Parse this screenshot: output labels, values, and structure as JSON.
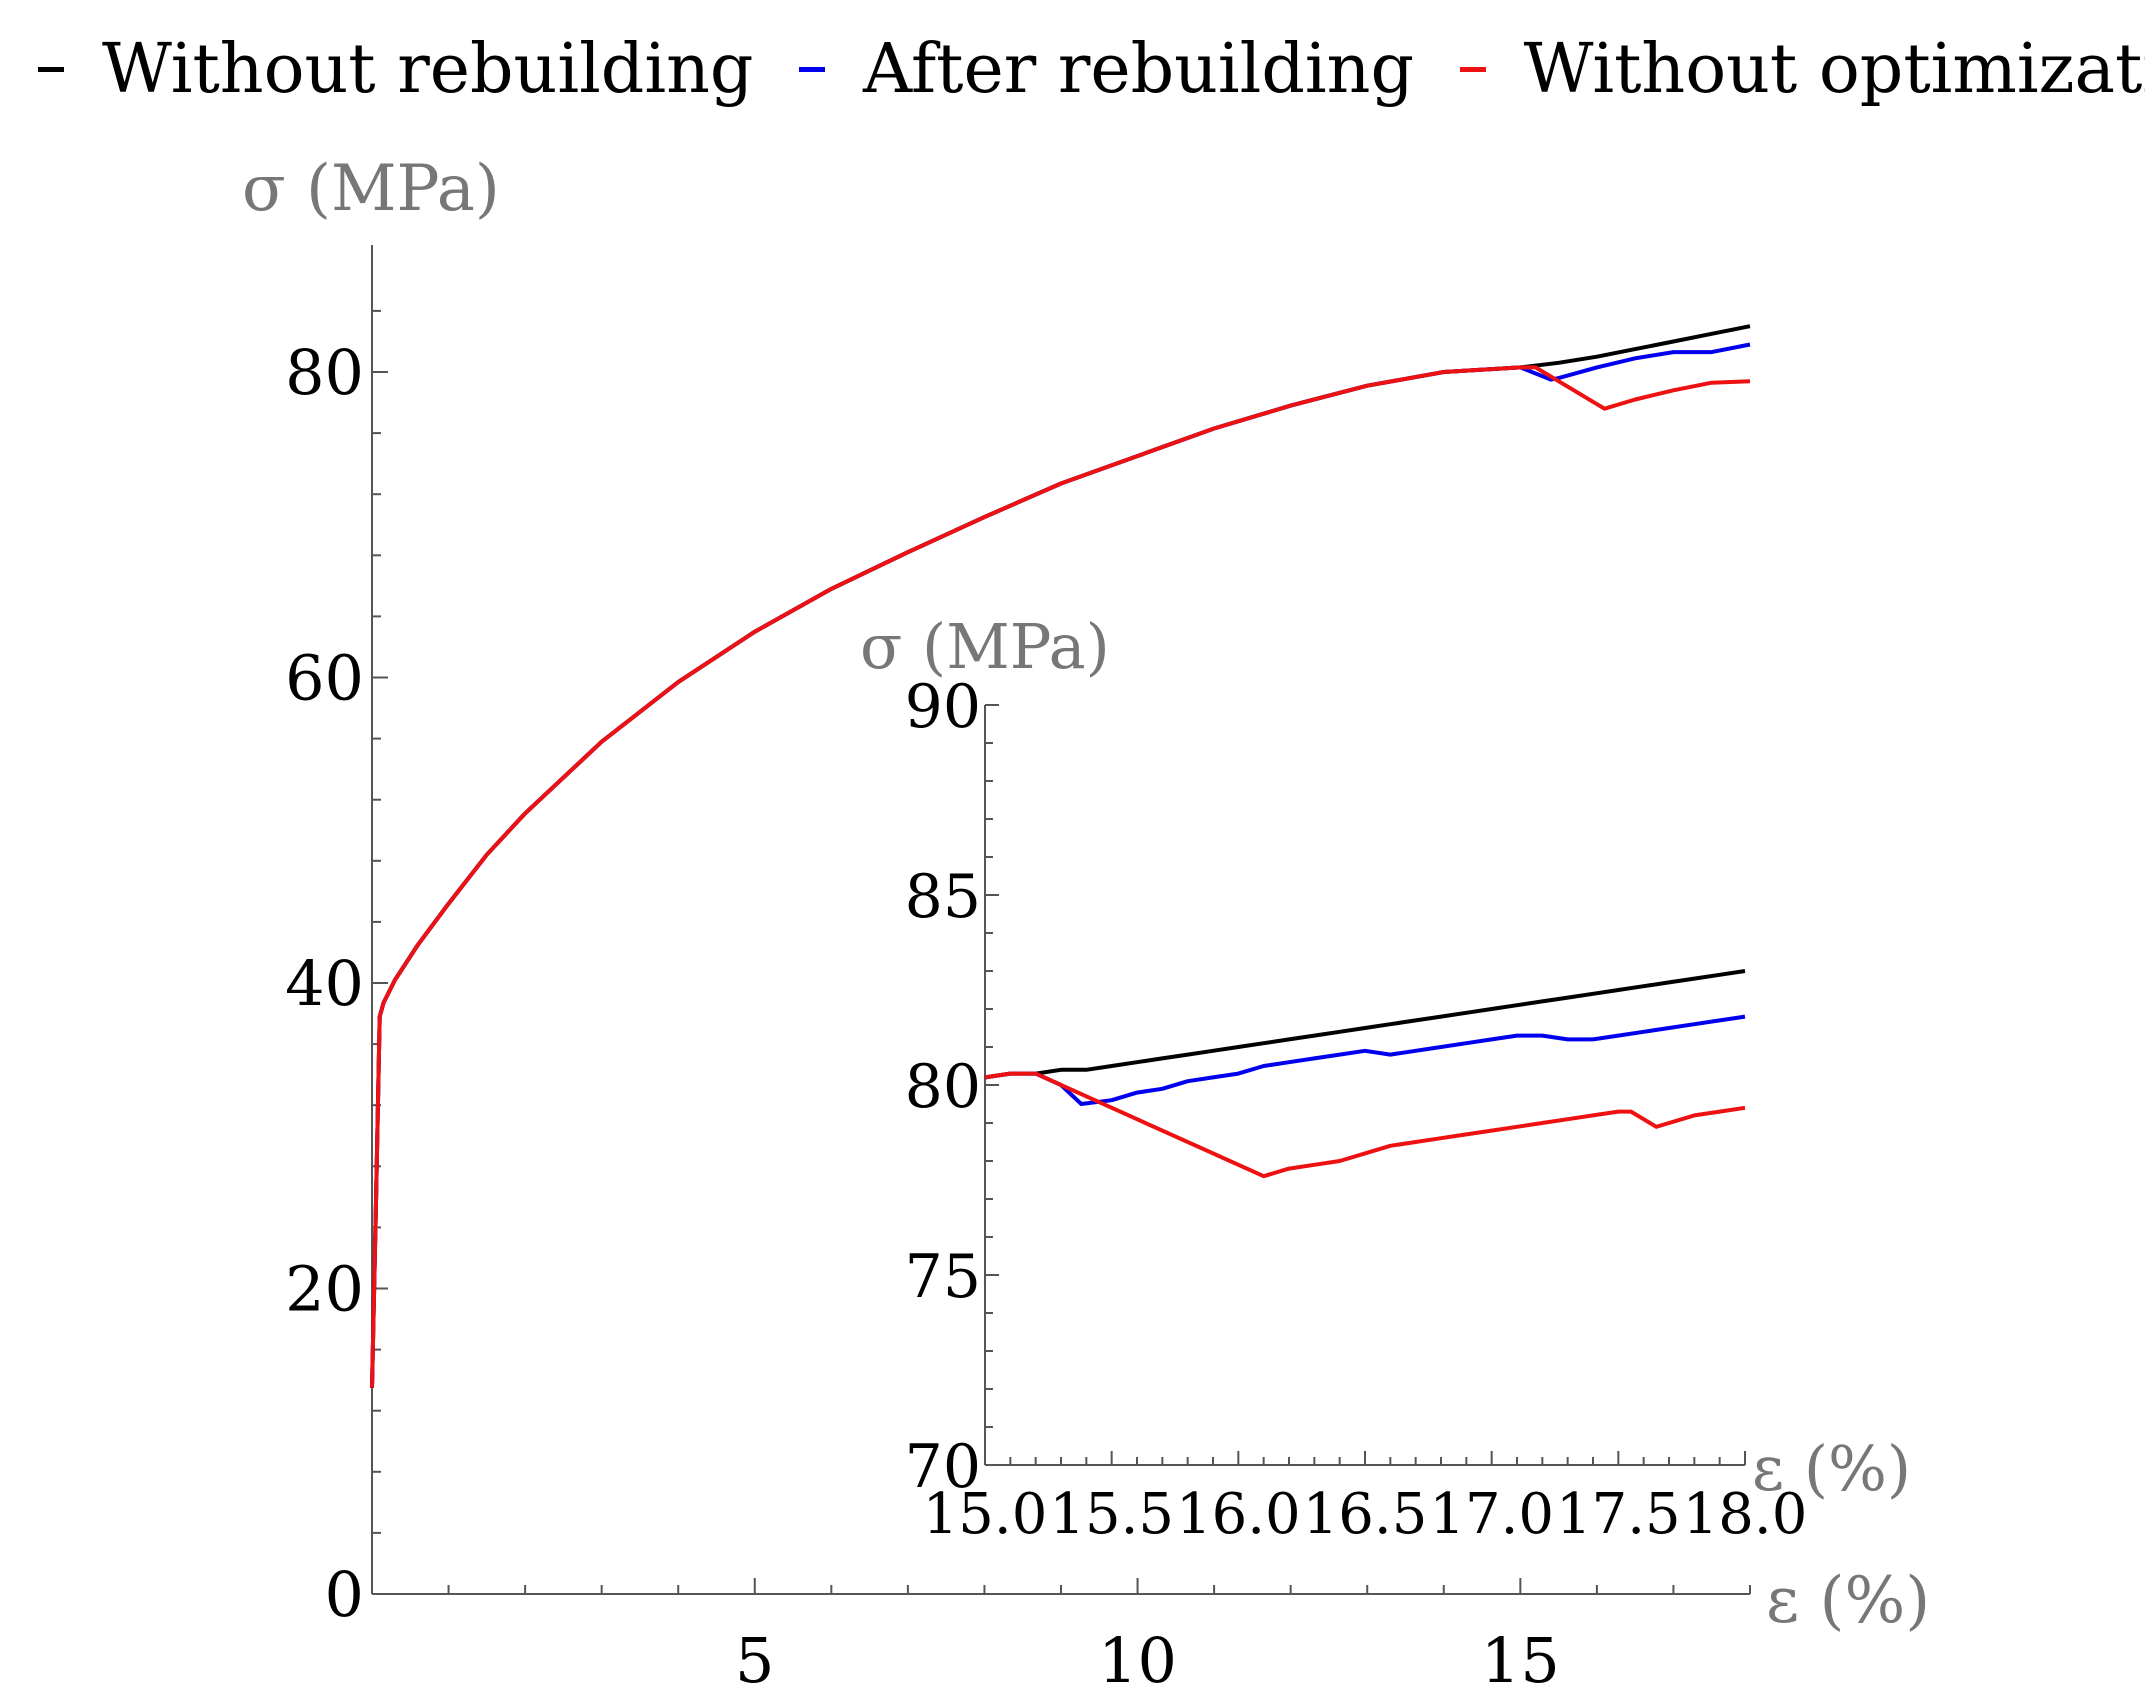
{
  "chart_data": [
    {
      "type": "line",
      "role": "main",
      "xlabel": "ε (%)",
      "ylabel": "σ (MPa)",
      "xlim": [
        0,
        18
      ],
      "ylim": [
        0,
        80
      ],
      "xticks": [
        5,
        10,
        15
      ],
      "yticks": [
        0,
        20,
        40,
        60,
        80
      ],
      "series": [
        {
          "name": "Without rebuilding",
          "color": "#000000",
          "x": [
            0,
            0.05,
            0.1,
            0.15,
            0.3,
            0.6,
            1,
            1.5,
            2,
            3,
            4,
            5,
            6,
            7,
            8,
            9,
            10,
            11,
            12,
            13,
            14,
            15,
            15.5,
            16,
            16.5,
            17,
            17.5,
            18
          ],
          "y": [
            13.5,
            25,
            37.8,
            38.7,
            40.2,
            42.5,
            45.2,
            48.4,
            51.1,
            55.8,
            59.7,
            63.0,
            65.8,
            68.2,
            70.5,
            72.7,
            74.5,
            76.3,
            77.8,
            79.1,
            80.0,
            80.3,
            80.6,
            81.0,
            81.5,
            82.0,
            82.5,
            83.0
          ]
        },
        {
          "name": "After rebuilding",
          "color": "#0000ee",
          "x": [
            0,
            0.05,
            0.1,
            0.15,
            0.3,
            0.6,
            1,
            1.5,
            2,
            3,
            4,
            5,
            6,
            7,
            8,
            9,
            10,
            11,
            12,
            13,
            14,
            15,
            15.4,
            15.5,
            16,
            16.5,
            17,
            17.5,
            18
          ],
          "y": [
            13.5,
            25,
            37.8,
            38.7,
            40.2,
            42.5,
            45.2,
            48.4,
            51.1,
            55.8,
            59.7,
            63.0,
            65.8,
            68.2,
            70.5,
            72.7,
            74.5,
            76.3,
            77.8,
            79.1,
            80.0,
            80.3,
            79.5,
            79.6,
            80.3,
            80.9,
            81.3,
            81.3,
            81.8
          ]
        },
        {
          "name": "Without optimization",
          "color": "#ee1111",
          "x": [
            0,
            0.05,
            0.1,
            0.15,
            0.3,
            0.6,
            1,
            1.5,
            2,
            3,
            4,
            5,
            6,
            7,
            8,
            9,
            10,
            11,
            12,
            13,
            14,
            15,
            15.2,
            16.1,
            16.5,
            17,
            17.5,
            18
          ],
          "y": [
            13.5,
            25,
            37.8,
            38.7,
            40.2,
            42.5,
            45.2,
            48.4,
            51.1,
            55.8,
            59.7,
            63.0,
            65.8,
            68.2,
            70.5,
            72.7,
            74.5,
            76.3,
            77.8,
            79.1,
            80.0,
            80.3,
            80.3,
            77.6,
            78.2,
            78.8,
            79.3,
            79.4
          ]
        }
      ]
    },
    {
      "type": "line",
      "role": "inset",
      "xlabel": "ε (%)",
      "ylabel": "σ (MPa)",
      "xlim": [
        15,
        18
      ],
      "ylim": [
        70,
        90
      ],
      "xticks": [
        "15.0",
        "15.5",
        "16.0",
        "16.5",
        "17.0",
        "17.5",
        "18.0"
      ],
      "yticks": [
        "70",
        "75",
        "80",
        "85",
        "90"
      ],
      "series": [
        {
          "name": "Without rebuilding",
          "color": "#000000",
          "x": [
            15.0,
            15.1,
            15.2,
            15.3,
            15.4,
            15.5,
            15.6,
            15.7,
            15.8,
            15.9,
            16.0,
            16.1,
            16.2,
            16.3,
            16.4,
            16.5,
            16.6,
            16.7,
            16.8,
            16.9,
            17.0,
            17.1,
            17.2,
            17.3,
            17.4,
            17.5,
            17.6,
            17.7,
            17.8,
            17.9,
            18.0
          ],
          "y": [
            80.2,
            80.3,
            80.3,
            80.4,
            80.4,
            80.5,
            80.6,
            80.7,
            80.8,
            80.9,
            81.0,
            81.1,
            81.2,
            81.3,
            81.4,
            81.5,
            81.6,
            81.7,
            81.8,
            81.9,
            82.0,
            82.1,
            82.2,
            82.3,
            82.4,
            82.5,
            82.6,
            82.7,
            82.8,
            82.9,
            83.0
          ]
        },
        {
          "name": "After rebuilding",
          "color": "#0000ee",
          "x": [
            15.0,
            15.1,
            15.2,
            15.3,
            15.38,
            15.5,
            15.6,
            15.7,
            15.8,
            15.9,
            16.0,
            16.1,
            16.2,
            16.3,
            16.4,
            16.5,
            16.6,
            16.7,
            16.8,
            16.9,
            17.0,
            17.1,
            17.2,
            17.3,
            17.4,
            17.5,
            17.6,
            17.7,
            17.8,
            17.9,
            18.0
          ],
          "y": [
            80.2,
            80.3,
            80.3,
            80.0,
            79.5,
            79.6,
            79.8,
            79.9,
            80.1,
            80.2,
            80.3,
            80.5,
            80.6,
            80.7,
            80.8,
            80.9,
            80.8,
            80.9,
            81.0,
            81.1,
            81.2,
            81.3,
            81.3,
            81.2,
            81.2,
            81.3,
            81.4,
            81.5,
            81.6,
            81.7,
            81.8
          ]
        },
        {
          "name": "Without optimization",
          "color": "#ee1111",
          "x": [
            15.0,
            15.1,
            15.2,
            16.1,
            16.2,
            16.3,
            16.4,
            16.5,
            16.6,
            16.7,
            16.8,
            16.9,
            17.0,
            17.1,
            17.2,
            17.3,
            17.4,
            17.5,
            17.55,
            17.65,
            17.7,
            17.8,
            17.9,
            18.0
          ],
          "y": [
            80.2,
            80.3,
            80.3,
            77.6,
            77.8,
            77.9,
            78.0,
            78.2,
            78.4,
            78.5,
            78.6,
            78.7,
            78.8,
            78.9,
            79.0,
            79.1,
            79.2,
            79.3,
            79.3,
            78.9,
            79.0,
            79.2,
            79.3,
            79.4
          ]
        }
      ]
    }
  ]
}
